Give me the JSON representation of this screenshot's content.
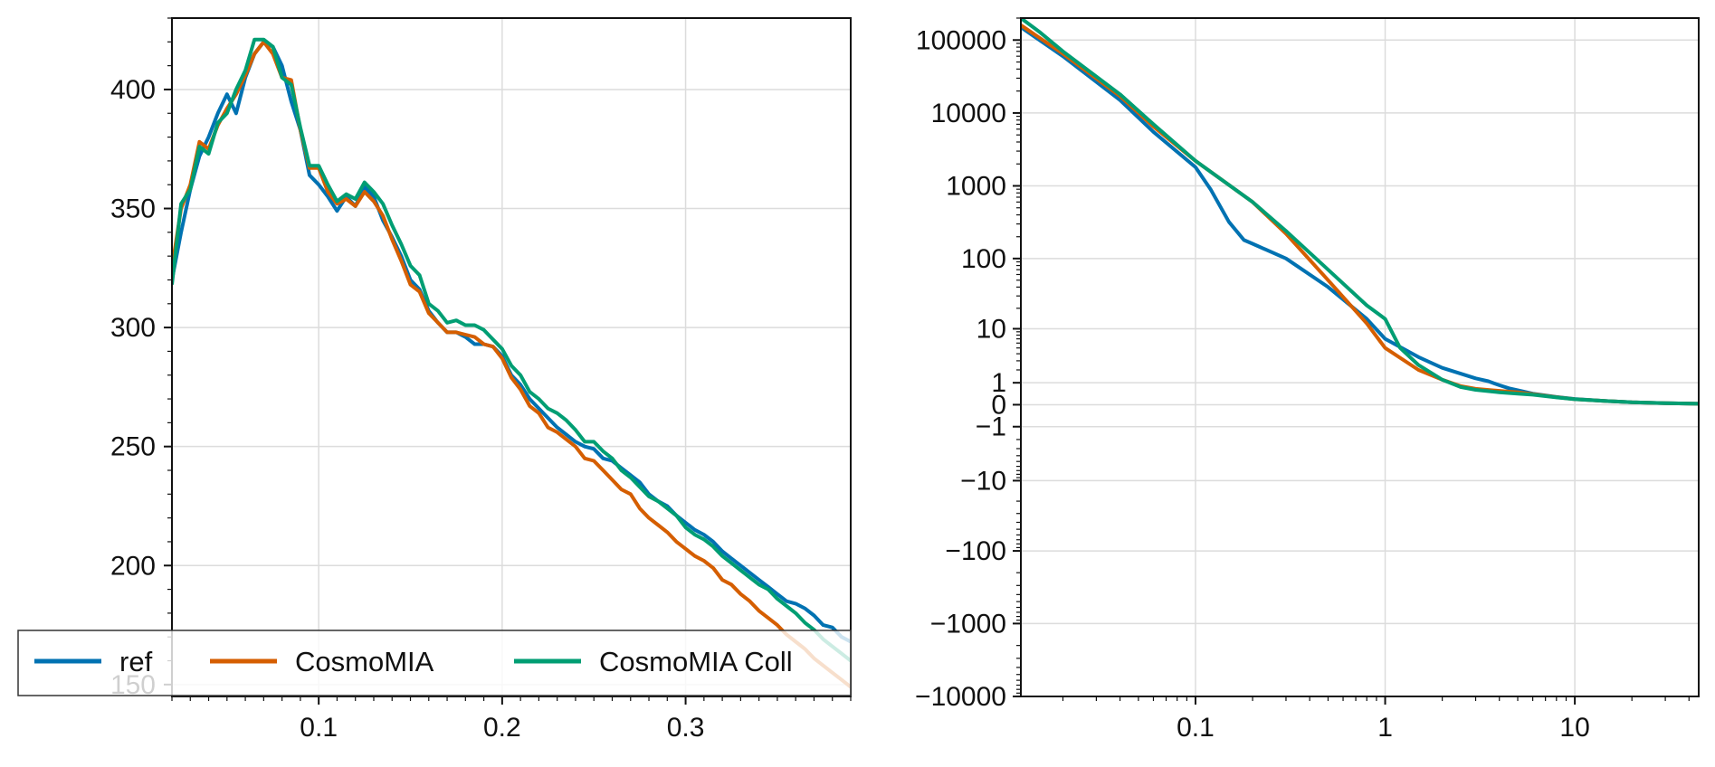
{
  "colors": {
    "ref": "#0072b2",
    "cosmomia": "#d55e00",
    "coll": "#009e73"
  },
  "chart_data": [
    {
      "type": "line",
      "xlim": [
        0.02,
        0.39
      ],
      "ylim": [
        145,
        430
      ],
      "grid": true,
      "legend": {
        "placement": "bottom",
        "columns": 3
      },
      "x_ticks": [
        0.1,
        0.2,
        0.3
      ],
      "x_tick_labels": [
        "0.1",
        "0.2",
        "0.3"
      ],
      "y_ticks": [
        150,
        200,
        250,
        300,
        350,
        400
      ],
      "y_tick_labels": [
        "150",
        "200",
        "250",
        "300",
        "350",
        "400"
      ],
      "series": [
        {
          "name": "ref",
          "color_key": "ref",
          "x": [
            0.02,
            0.025,
            0.03,
            0.035,
            0.04,
            0.045,
            0.05,
            0.055,
            0.06,
            0.065,
            0.07,
            0.075,
            0.08,
            0.085,
            0.09,
            0.095,
            0.1,
            0.105,
            0.11,
            0.115,
            0.12,
            0.125,
            0.13,
            0.135,
            0.14,
            0.145,
            0.15,
            0.155,
            0.16,
            0.165,
            0.17,
            0.175,
            0.18,
            0.185,
            0.19,
            0.195,
            0.2,
            0.205,
            0.21,
            0.215,
            0.22,
            0.225,
            0.23,
            0.235,
            0.24,
            0.245,
            0.25,
            0.255,
            0.26,
            0.265,
            0.27,
            0.275,
            0.28,
            0.285,
            0.29,
            0.295,
            0.3,
            0.305,
            0.31,
            0.315,
            0.32,
            0.325,
            0.33,
            0.335,
            0.34,
            0.345,
            0.35,
            0.355,
            0.36,
            0.365,
            0.37,
            0.375,
            0.38,
            0.385,
            0.39
          ],
          "y": [
            320,
            340,
            358,
            372,
            380,
            390,
            398,
            390,
            405,
            415,
            420,
            418,
            410,
            395,
            383,
            364,
            360,
            355,
            349,
            355,
            351,
            359,
            355,
            345,
            338,
            330,
            320,
            316,
            307,
            302,
            298,
            298,
            296,
            293,
            293,
            292,
            288,
            280,
            276,
            270,
            266,
            262,
            258,
            255,
            252,
            250,
            249,
            245,
            244,
            241,
            238,
            235,
            230,
            227,
            225,
            221,
            218,
            215,
            213,
            210,
            206,
            203,
            200,
            197,
            194,
            191,
            188,
            185,
            184,
            182,
            179,
            175,
            174,
            170,
            168
          ]
        },
        {
          "name": "CosmoMIA",
          "color_key": "cosmomia",
          "x": [
            0.02,
            0.025,
            0.03,
            0.035,
            0.04,
            0.045,
            0.05,
            0.055,
            0.06,
            0.065,
            0.07,
            0.075,
            0.08,
            0.085,
            0.09,
            0.095,
            0.1,
            0.105,
            0.11,
            0.115,
            0.12,
            0.125,
            0.13,
            0.135,
            0.14,
            0.145,
            0.15,
            0.155,
            0.16,
            0.165,
            0.17,
            0.175,
            0.18,
            0.185,
            0.19,
            0.195,
            0.2,
            0.205,
            0.21,
            0.215,
            0.22,
            0.225,
            0.23,
            0.235,
            0.24,
            0.245,
            0.25,
            0.255,
            0.26,
            0.265,
            0.27,
            0.275,
            0.28,
            0.285,
            0.29,
            0.295,
            0.3,
            0.305,
            0.31,
            0.315,
            0.32,
            0.325,
            0.33,
            0.335,
            0.34,
            0.345,
            0.35,
            0.355,
            0.36,
            0.365,
            0.37,
            0.375,
            0.38,
            0.385,
            0.39
          ],
          "y": [
            325,
            350,
            360,
            378,
            375,
            385,
            392,
            398,
            406,
            415,
            420,
            415,
            405,
            404,
            383,
            367,
            367,
            357,
            352,
            354,
            351,
            357,
            353,
            347,
            337,
            328,
            318,
            315,
            306,
            302,
            298,
            298,
            297,
            296,
            293,
            292,
            287,
            279,
            274,
            267,
            264,
            258,
            256,
            253,
            250,
            245,
            244,
            240,
            236,
            232,
            230,
            224,
            220,
            217,
            214,
            210,
            207,
            204,
            202,
            199,
            194,
            192,
            188,
            185,
            181,
            178,
            175,
            171,
            168,
            165,
            161,
            158,
            155,
            152,
            149
          ]
        },
        {
          "name": "CosmoMIA Coll",
          "color_key": "coll",
          "x": [
            0.02,
            0.025,
            0.03,
            0.035,
            0.04,
            0.045,
            0.05,
            0.055,
            0.06,
            0.065,
            0.07,
            0.075,
            0.08,
            0.085,
            0.09,
            0.095,
            0.1,
            0.105,
            0.11,
            0.115,
            0.12,
            0.125,
            0.13,
            0.135,
            0.14,
            0.145,
            0.15,
            0.155,
            0.16,
            0.165,
            0.17,
            0.175,
            0.18,
            0.185,
            0.19,
            0.195,
            0.2,
            0.205,
            0.21,
            0.215,
            0.22,
            0.225,
            0.23,
            0.235,
            0.24,
            0.245,
            0.25,
            0.255,
            0.26,
            0.265,
            0.27,
            0.275,
            0.28,
            0.285,
            0.29,
            0.295,
            0.3,
            0.305,
            0.31,
            0.315,
            0.32,
            0.325,
            0.33,
            0.335,
            0.34,
            0.345,
            0.35,
            0.355,
            0.36,
            0.365,
            0.37,
            0.375,
            0.38,
            0.385,
            0.39
          ],
          "y": [
            318,
            352,
            358,
            376,
            373,
            386,
            390,
            400,
            408,
            421,
            421,
            418,
            405,
            402,
            384,
            368,
            368,
            360,
            353,
            356,
            354,
            361,
            357,
            352,
            343,
            335,
            326,
            322,
            310,
            307,
            302,
            303,
            301,
            301,
            299,
            295,
            291,
            284,
            280,
            273,
            270,
            266,
            264,
            261,
            257,
            252,
            252,
            248,
            245,
            240,
            237,
            233,
            229,
            227,
            224,
            221,
            216,
            213,
            211,
            208,
            204,
            201,
            198,
            195,
            192,
            190,
            186,
            183,
            180,
            176,
            173,
            169,
            166,
            163,
            160
          ]
        }
      ]
    },
    {
      "type": "line",
      "x_scale": "log",
      "y_scale": "symlog",
      "xlim": [
        0.012,
        45
      ],
      "ylim": [
        -10000,
        200000
      ],
      "grid": true,
      "x_ticks": [
        0.1,
        1,
        10
      ],
      "x_tick_labels": [
        "0.1",
        "1",
        "10"
      ],
      "y_ticks": [
        100000,
        10000,
        1000,
        100,
        10,
        1,
        0,
        -1,
        -10,
        -100,
        -1000,
        -10000
      ],
      "y_tick_labels": [
        "100000",
        "10000",
        "1000",
        "100",
        "10",
        "1",
        "0",
        "−1",
        "−10",
        "−100",
        "−1000",
        "−10000"
      ],
      "series": [
        {
          "name": "ref",
          "color_key": "ref",
          "x": [
            0.012,
            0.02,
            0.04,
            0.06,
            0.1,
            0.12,
            0.15,
            0.18,
            0.2,
            0.3,
            0.5,
            0.8,
            1,
            1.5,
            2,
            3,
            3.5,
            4,
            4.5,
            5,
            6,
            8,
            10,
            15,
            20,
            30,
            45
          ],
          "y": [
            150000,
            60000,
            15000,
            5500,
            1800,
            900,
            320,
            180,
            160,
            100,
            40,
            14,
            7,
            3.5,
            2.2,
            1.3,
            1.1,
            0.85,
            0.68,
            0.58,
            0.42,
            0.28,
            0.2,
            0.12,
            0.08,
            0.05,
            0.03
          ]
        },
        {
          "name": "CosmoMIA",
          "color_key": "cosmomia",
          "x": [
            0.012,
            0.02,
            0.04,
            0.06,
            0.1,
            0.2,
            0.3,
            0.5,
            0.8,
            1,
            1.5,
            2,
            2.5,
            3,
            4,
            5,
            6,
            8,
            10,
            15,
            20,
            30,
            45
          ],
          "y": [
            160000,
            65000,
            17000,
            6500,
            2200,
            600,
            220,
            50,
            12,
            5,
            2,
            1.2,
            0.8,
            0.65,
            0.55,
            0.48,
            0.4,
            0.27,
            0.19,
            0.12,
            0.08,
            0.05,
            0.03
          ]
        },
        {
          "name": "CosmoMIA Coll",
          "color_key": "coll",
          "x": [
            0.012,
            0.015,
            0.02,
            0.04,
            0.06,
            0.1,
            0.2,
            0.3,
            0.5,
            0.8,
            1,
            1.2,
            1.5,
            2,
            2.5,
            3,
            4,
            5,
            6,
            8,
            10,
            15,
            20,
            30,
            45
          ],
          "y": [
            200000,
            130000,
            70000,
            18000,
            7000,
            2200,
            600,
            240,
            70,
            22,
            14,
            5,
            2.5,
            1.2,
            0.75,
            0.6,
            0.48,
            0.42,
            0.37,
            0.26,
            0.19,
            0.12,
            0.08,
            0.05,
            0.03
          ]
        }
      ]
    }
  ]
}
